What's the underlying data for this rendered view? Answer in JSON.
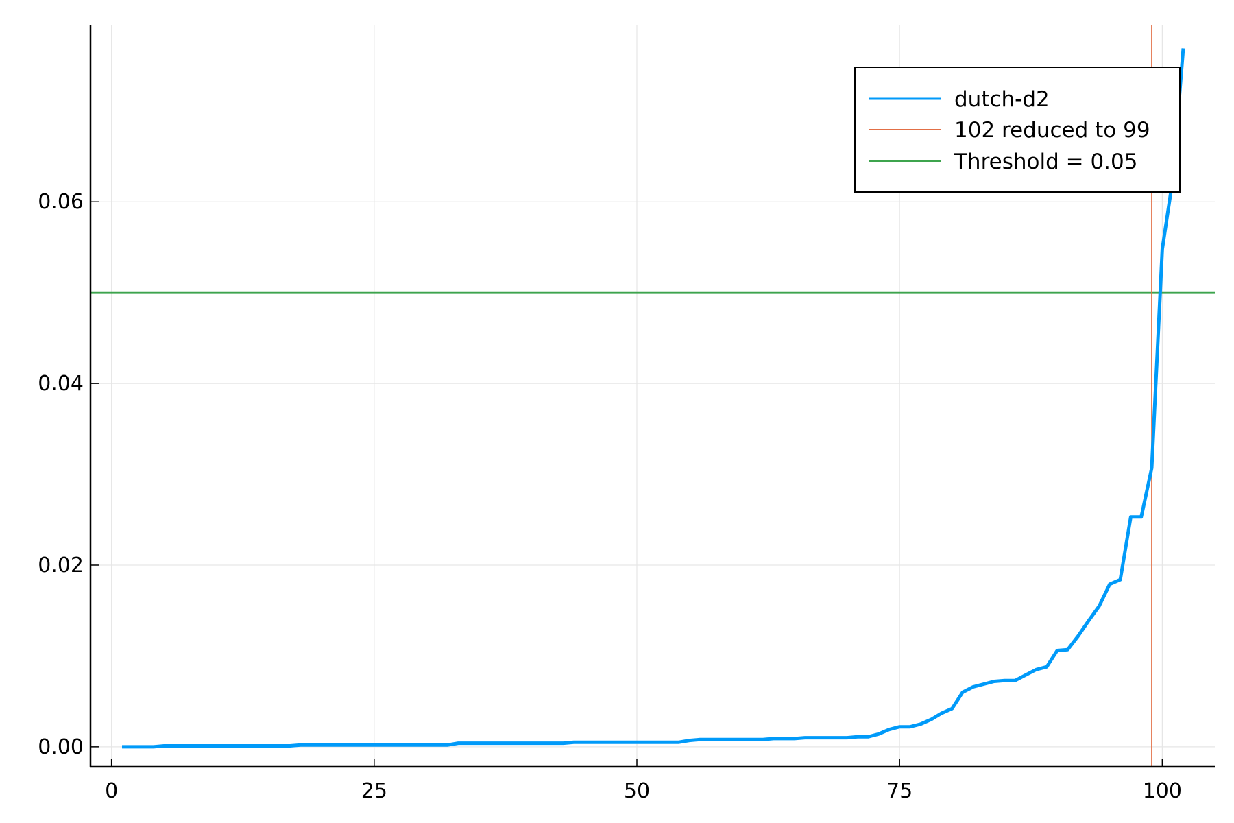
{
  "chart_data": {
    "type": "line",
    "title": "",
    "xlabel": "",
    "ylabel": "",
    "xlim": [
      -2,
      105
    ],
    "ylim": [
      -0.0022,
      0.0795
    ],
    "xticks": [
      0,
      25,
      50,
      75,
      100
    ],
    "xtick_labels": [
      "0",
      "25",
      "50",
      "75",
      "100"
    ],
    "yticks": [
      0.0,
      0.02,
      0.04,
      0.06
    ],
    "ytick_labels": [
      "0.00",
      "0.02",
      "0.04",
      "0.06"
    ],
    "grid": true,
    "legend_position": "top-right",
    "series": [
      {
        "name": "dutch-d2",
        "color": "#009af9",
        "x": [
          1,
          2,
          3,
          4,
          5,
          6,
          7,
          8,
          9,
          10,
          11,
          12,
          13,
          14,
          15,
          16,
          17,
          18,
          19,
          20,
          21,
          22,
          23,
          24,
          25,
          26,
          27,
          28,
          29,
          30,
          31,
          32,
          33,
          34,
          35,
          36,
          37,
          38,
          39,
          40,
          41,
          42,
          43,
          44,
          45,
          46,
          47,
          48,
          49,
          50,
          51,
          52,
          53,
          54,
          55,
          56,
          57,
          58,
          59,
          60,
          61,
          62,
          63,
          64,
          65,
          66,
          67,
          68,
          69,
          70,
          71,
          72,
          73,
          74,
          75,
          76,
          77,
          78,
          79,
          80,
          81,
          82,
          83,
          84,
          85,
          86,
          87,
          88,
          89,
          90,
          91,
          92,
          93,
          94,
          95,
          96,
          97,
          98,
          99,
          100,
          101,
          102
        ],
        "y": [
          0.0,
          0.0,
          0.0,
          0.0,
          0.0001,
          0.0001,
          0.0001,
          0.0001,
          0.0001,
          0.0001,
          0.0001,
          0.0001,
          0.0001,
          0.0001,
          0.0001,
          0.0001,
          0.0001,
          0.0002,
          0.0002,
          0.0002,
          0.0002,
          0.0002,
          0.0002,
          0.0002,
          0.0002,
          0.0002,
          0.0002,
          0.0002,
          0.0002,
          0.0002,
          0.0002,
          0.0002,
          0.0004,
          0.0004,
          0.0004,
          0.0004,
          0.0004,
          0.0004,
          0.0004,
          0.0004,
          0.0004,
          0.0004,
          0.0004,
          0.0005,
          0.0005,
          0.0005,
          0.0005,
          0.0005,
          0.0005,
          0.0005,
          0.0005,
          0.0005,
          0.0005,
          0.0005,
          0.0007,
          0.0008,
          0.0008,
          0.0008,
          0.0008,
          0.0008,
          0.0008,
          0.0008,
          0.0009,
          0.0009,
          0.0009,
          0.001,
          0.001,
          0.001,
          0.001,
          0.001,
          0.0011,
          0.0011,
          0.0014,
          0.0019,
          0.0022,
          0.0022,
          0.0025,
          0.003,
          0.0037,
          0.0042,
          0.006,
          0.0066,
          0.0069,
          0.0072,
          0.0073,
          0.0073,
          0.0079,
          0.0085,
          0.0088,
          0.0106,
          0.0107,
          0.0122,
          0.0139,
          0.0155,
          0.0179,
          0.0184,
          0.0253,
          0.0253,
          0.0307,
          0.0548,
          0.0625,
          0.0769
        ]
      },
      {
        "name": "102 reduced to 99",
        "color": "#e26f46",
        "type": "vline",
        "x": 99
      },
      {
        "name": "Threshold = 0.05",
        "color": "#3da44d",
        "type": "hline",
        "y": 0.05
      }
    ]
  }
}
